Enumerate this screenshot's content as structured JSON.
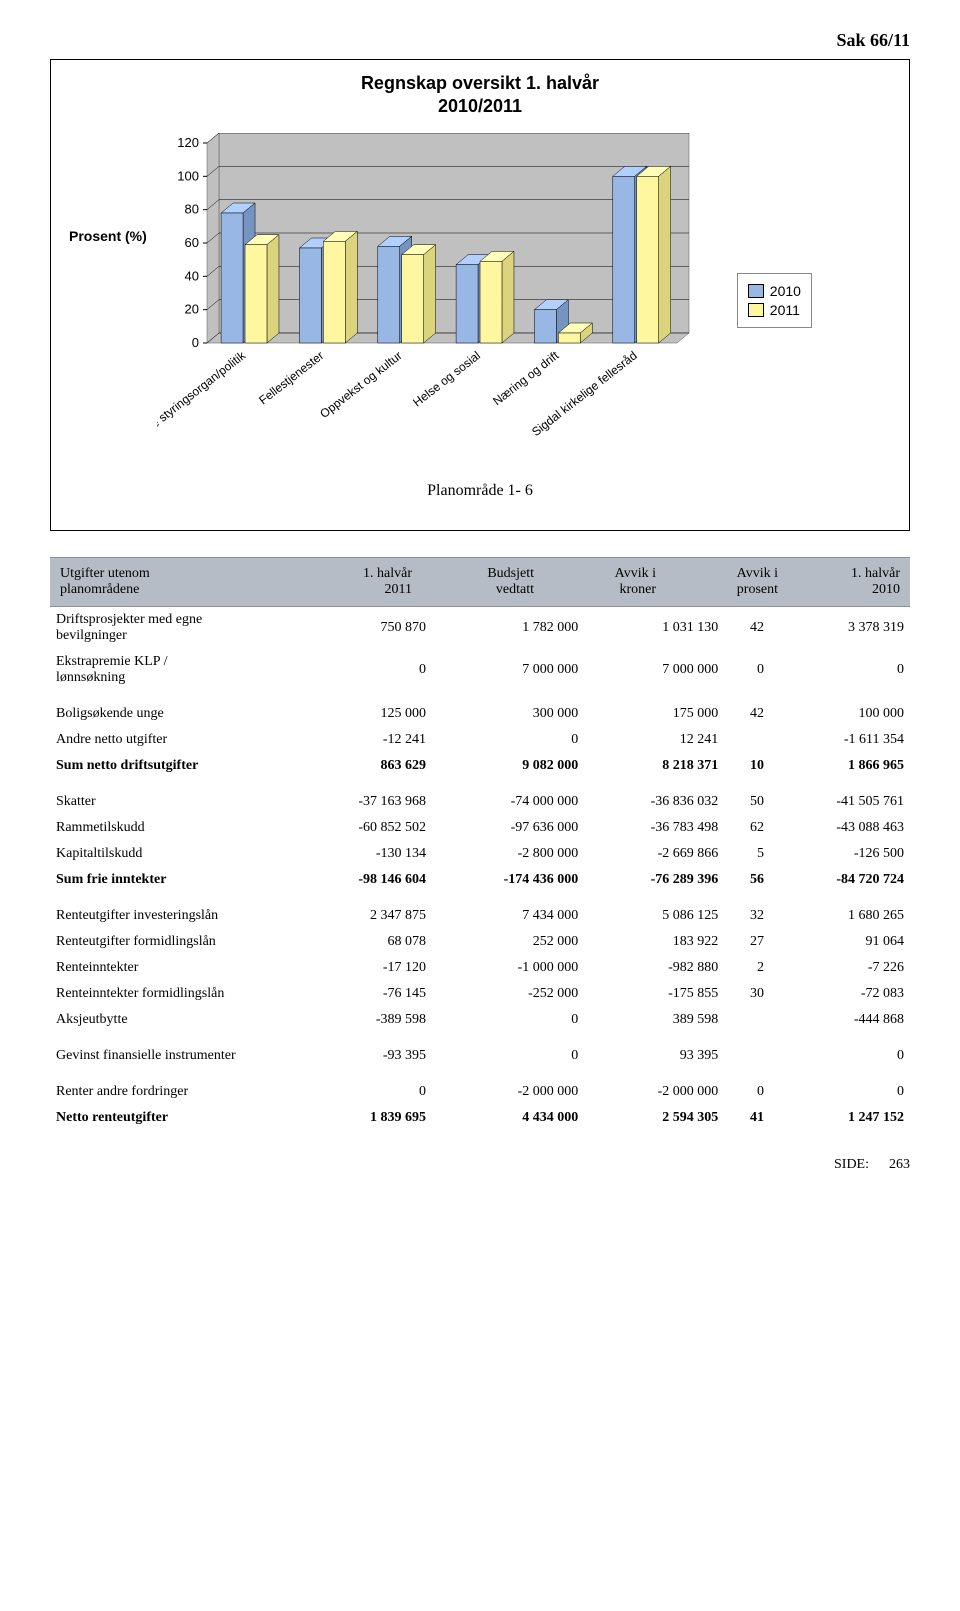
{
  "header": {
    "sak": "Sak 66/11"
  },
  "chart": {
    "type": "bar",
    "title_line1": "Regnskap oversikt 1. halvår",
    "title_line2": "2010/2011",
    "y_label": "Prosent (%)",
    "caption": "Planområde 1- 6",
    "background_color": "#c0c0c0",
    "grid_color": "#000000",
    "plot_wall_color": "#c0c0c0",
    "plot_floor_color": "#c0c0c0",
    "ymin": 0,
    "ymax": 120,
    "ytick_step": 20,
    "categories": [
      "Sentrale styringsorgan/politik",
      "Fellestjenester",
      "Oppvekst og kultur",
      "Helse og sosial",
      "Næring og drift",
      "Sigdal kirkelige fellesråd"
    ],
    "series": [
      {
        "name": "2010",
        "color": "#99b7e4",
        "values": [
          78,
          57,
          58,
          47,
          20,
          100
        ]
      },
      {
        "name": "2011",
        "color": "#fff6a0",
        "values": [
          59,
          61,
          53,
          49,
          6,
          100
        ]
      }
    ],
    "label_fontsize": 12,
    "label_angle_deg": -38
  },
  "headers": {
    "c1a": "Utgifter utenom",
    "c1b": "planområdene",
    "c2a": "1. halvår",
    "c2b": "2011",
    "c3a": "Budsjett",
    "c3b": "vedtatt",
    "c4a": "Avvik i",
    "c4b": "kroner",
    "c5a": "Avvik i",
    "c5b": "prosent",
    "c6a": "1. halvår",
    "c6b": "2010"
  },
  "rows": [
    {
      "label_a": "Driftsprosjekter med egne",
      "label_b": "bevilgninger",
      "v1": "750 870",
      "v2": "1 782 000",
      "v3": "1 031 130",
      "v4": "42",
      "v5": "3 378 319"
    },
    {
      "label_a": "Ekstrapremie KLP /",
      "label_b": "lønnsøkning",
      "v1": "0",
      "v2": "7 000 000",
      "v3": "7 000 000",
      "v4": "0",
      "v5": "0"
    }
  ],
  "rows2": [
    {
      "label": "Boligsøkende unge",
      "v1": "125 000",
      "v2": "300 000",
      "v3": "175 000",
      "v4": "42",
      "v5": "100 000"
    },
    {
      "label": "Andre netto utgifter",
      "v1": "-12 241",
      "v2": "0",
      "v3": "12 241",
      "v4": "",
      "v5": "-1 611 354"
    }
  ],
  "sum_drift": {
    "label": "Sum netto driftsutgifter",
    "v1": "863 629",
    "v2": "9 082 000",
    "v3": "8 218 371",
    "v4": "10",
    "v5": "1 866 965"
  },
  "rows3": [
    {
      "label": "Skatter",
      "v1": "-37 163 968",
      "v2": "-74 000 000",
      "v3": "-36 836 032",
      "v4": "50",
      "v5": "-41 505 761"
    },
    {
      "label": "Rammetilskudd",
      "v1": "-60 852 502",
      "v2": "-97 636 000",
      "v3": "-36 783 498",
      "v4": "62",
      "v5": "-43 088 463"
    },
    {
      "label": "Kapitaltilskudd",
      "v1": "-130 134",
      "v2": "-2 800 000",
      "v3": "-2 669 866",
      "v4": "5",
      "v5": "-126 500"
    }
  ],
  "sum_frie": {
    "label": "Sum frie inntekter",
    "v1": "-98 146 604",
    "v2": "-174 436 000",
    "v3": "-76 289 396",
    "v4": "56",
    "v5": "-84 720 724"
  },
  "rows4": [
    {
      "label": "Renteutgifter investeringslån",
      "v1": "2 347 875",
      "v2": "7 434 000",
      "v3": "5 086 125",
      "v4": "32",
      "v5": "1 680 265"
    },
    {
      "label": "Renteutgifter formidlingslån",
      "v1": "68 078",
      "v2": "252 000",
      "v3": "183 922",
      "v4": "27",
      "v5": "91 064"
    },
    {
      "label": "Renteinntekter",
      "v1": "-17 120",
      "v2": "-1 000 000",
      "v3": "-982 880",
      "v4": "2",
      "v5": "-7 226"
    },
    {
      "label": "Renteinntekter formidlingslån",
      "v1": "-76 145",
      "v2": "-252 000",
      "v3": "-175 855",
      "v4": "30",
      "v5": "-72 083"
    },
    {
      "label": "Aksjeutbytte",
      "v1": "-389 598",
      "v2": "0",
      "v3": "389 598",
      "v4": "",
      "v5": "-444 868"
    }
  ],
  "rows5": [
    {
      "label": "Gevinst finansielle instrumenter",
      "v1": "-93 395",
      "v2": "0",
      "v3": "93 395",
      "v4": "",
      "v5": "0"
    }
  ],
  "rows6": [
    {
      "label": "Renter andre fordringer",
      "v1": "0",
      "v2": "-2 000 000",
      "v3": "-2 000 000",
      "v4": "0",
      "v5": "0"
    }
  ],
  "sum_rente": {
    "label": "Netto renteutgifter",
    "v1": "1 839 695",
    "v2": "4 434 000",
    "v3": "2 594 305",
    "v4": "41",
    "v5": "1 247 152"
  },
  "footer": {
    "side_label": "SIDE:",
    "page": "263"
  }
}
